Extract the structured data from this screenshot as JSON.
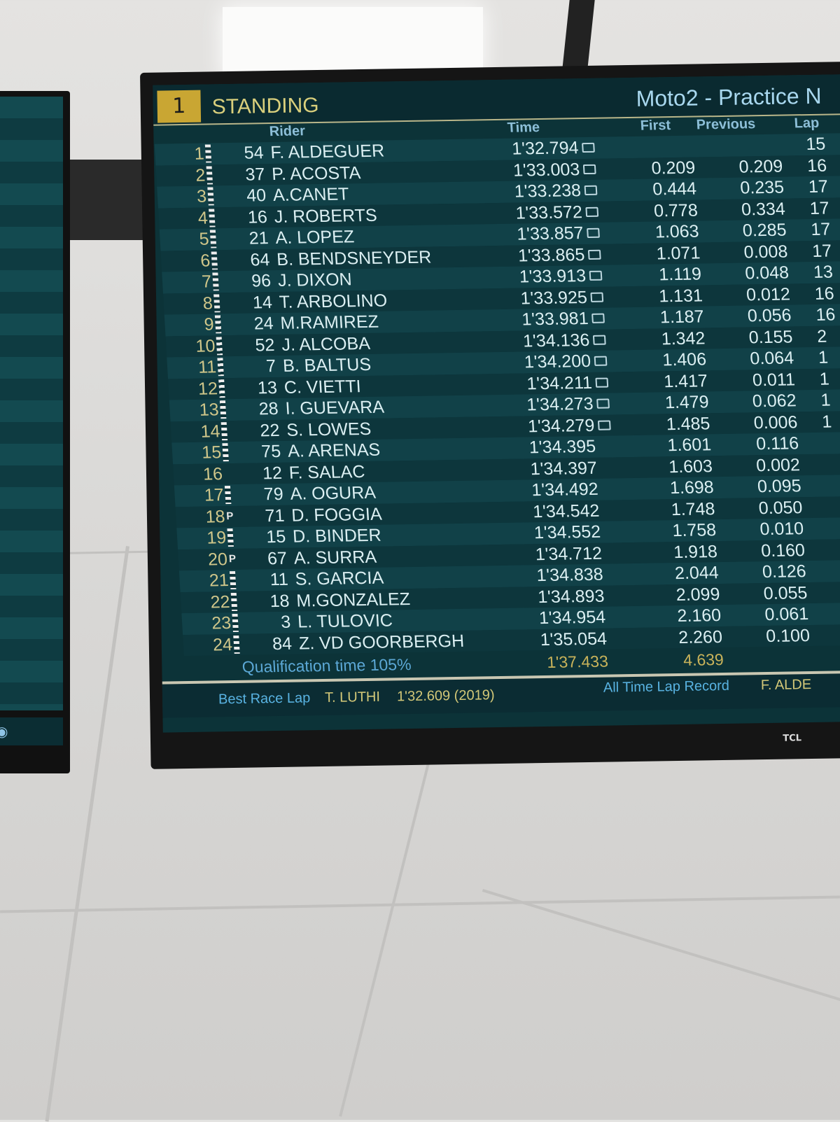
{
  "board": {
    "session_number": "1",
    "standing_label": "STANDING",
    "title": "Moto2 - Practice N",
    "columns": {
      "rider": "Rider",
      "time": "Time",
      "first": "First",
      "previous": "Previous",
      "laps": "Lap"
    },
    "rows": [
      {
        "pos": "1",
        "marker": "checkered",
        "number": "54",
        "rider": "F. ALDEGUER",
        "time": "1'32.794",
        "time_icon": true,
        "first": "",
        "previous": "",
        "laps": "15"
      },
      {
        "pos": "2",
        "marker": "checkered",
        "number": "37",
        "rider": "P. ACOSTA",
        "time": "1'33.003",
        "time_icon": true,
        "first": "0.209",
        "previous": "0.209",
        "laps": "16"
      },
      {
        "pos": "3",
        "marker": "checkered",
        "number": "40",
        "rider": "A.CANET",
        "time": "1'33.238",
        "time_icon": true,
        "first": "0.444",
        "previous": "0.235",
        "laps": "17"
      },
      {
        "pos": "4",
        "marker": "checkered",
        "number": "16",
        "rider": "J. ROBERTS",
        "time": "1'33.572",
        "time_icon": true,
        "first": "0.778",
        "previous": "0.334",
        "laps": "17"
      },
      {
        "pos": "5",
        "marker": "checkered",
        "number": "21",
        "rider": "A. LOPEZ",
        "time": "1'33.857",
        "time_icon": true,
        "first": "1.063",
        "previous": "0.285",
        "laps": "17"
      },
      {
        "pos": "6",
        "marker": "checkered",
        "number": "64",
        "rider": "B. BENDSNEYDER",
        "time": "1'33.865",
        "time_icon": true,
        "first": "1.071",
        "previous": "0.008",
        "laps": "17"
      },
      {
        "pos": "7",
        "marker": "checkered",
        "number": "96",
        "rider": "J. DIXON",
        "time": "1'33.913",
        "time_icon": true,
        "first": "1.119",
        "previous": "0.048",
        "laps": "13"
      },
      {
        "pos": "8",
        "marker": "checkered",
        "number": "14",
        "rider": "T. ARBOLINO",
        "time": "1'33.925",
        "time_icon": true,
        "first": "1.131",
        "previous": "0.012",
        "laps": "16"
      },
      {
        "pos": "9",
        "marker": "checkered",
        "number": "24",
        "rider": "M.RAMIREZ",
        "time": "1'33.981",
        "time_icon": true,
        "first": "1.187",
        "previous": "0.056",
        "laps": "16"
      },
      {
        "pos": "10",
        "marker": "checkered",
        "number": "52",
        "rider": "J. ALCOBA",
        "time": "1'34.136",
        "time_icon": true,
        "first": "1.342",
        "previous": "0.155",
        "laps": "2"
      },
      {
        "pos": "11",
        "marker": "checkered",
        "number": "7",
        "rider": "B. BALTUS",
        "time": "1'34.200",
        "time_icon": true,
        "first": "1.406",
        "previous": "0.064",
        "laps": "1"
      },
      {
        "pos": "12",
        "marker": "checkered",
        "number": "13",
        "rider": "C. VIETTI",
        "time": "1'34.211",
        "time_icon": true,
        "first": "1.417",
        "previous": "0.011",
        "laps": "1"
      },
      {
        "pos": "13",
        "marker": "checkered",
        "number": "28",
        "rider": "I. GUEVARA",
        "time": "1'34.273",
        "time_icon": true,
        "first": "1.479",
        "previous": "0.062",
        "laps": "1"
      },
      {
        "pos": "14",
        "marker": "checkered",
        "number": "22",
        "rider": "S. LOWES",
        "time": "1'34.279",
        "time_icon": true,
        "first": "1.485",
        "previous": "0.006",
        "laps": "1"
      },
      {
        "pos": "15",
        "marker": "checkered",
        "number": "75",
        "rider": "A. ARENAS",
        "time": "1'34.395",
        "time_icon": false,
        "first": "1.601",
        "previous": "0.116",
        "laps": ""
      },
      {
        "pos": "16",
        "marker": "",
        "number": "12",
        "rider": "F. SALAC",
        "time": "1'34.397",
        "time_icon": false,
        "first": "1.603",
        "previous": "0.002",
        "laps": ""
      },
      {
        "pos": "17",
        "marker": "checkered",
        "number": "79",
        "rider": "A. OGURA",
        "time": "1'34.492",
        "time_icon": false,
        "first": "1.698",
        "previous": "0.095",
        "laps": ""
      },
      {
        "pos": "18",
        "marker": "P",
        "number": "71",
        "rider": "D. FOGGIA",
        "time": "1'34.542",
        "time_icon": false,
        "first": "1.748",
        "previous": "0.050",
        "laps": ""
      },
      {
        "pos": "19",
        "marker": "checkered",
        "number": "15",
        "rider": "D. BINDER",
        "time": "1'34.552",
        "time_icon": false,
        "first": "1.758",
        "previous": "0.010",
        "laps": ""
      },
      {
        "pos": "20",
        "marker": "P",
        "number": "67",
        "rider": "A. SURRA",
        "time": "1'34.712",
        "time_icon": false,
        "first": "1.918",
        "previous": "0.160",
        "laps": ""
      },
      {
        "pos": "21",
        "marker": "checkered",
        "number": "11",
        "rider": "S. GARCIA",
        "time": "1'34.838",
        "time_icon": false,
        "first": "2.044",
        "previous": "0.126",
        "laps": ""
      },
      {
        "pos": "22",
        "marker": "checkered",
        "number": "18",
        "rider": "M.GONZALEZ",
        "time": "1'34.893",
        "time_icon": false,
        "first": "2.099",
        "previous": "0.055",
        "laps": ""
      },
      {
        "pos": "23",
        "marker": "checkered",
        "number": "3",
        "rider": "L. TULOVIC",
        "time": "1'34.954",
        "time_icon": false,
        "first": "2.160",
        "previous": "0.061",
        "laps": ""
      },
      {
        "pos": "24",
        "marker": "checkered",
        "number": "84",
        "rider": "Z. VD GOORBERGH",
        "time": "1'35.054",
        "time_icon": false,
        "first": "2.260",
        "previous": "0.100",
        "laps": ""
      }
    ],
    "qualification": {
      "label": "Qualification time 105%",
      "time": "1'37.433",
      "gap": "4.639"
    },
    "footer": {
      "best_race_lap_label": "Best Race Lap",
      "best_race_lap_rider": "T. LUTHI",
      "best_race_lap_time": "1'32.609 (2019)",
      "all_time_label": "All Time Lap Record",
      "all_time_rider": "F. ALDE"
    },
    "tv_brand": "TCL"
  },
  "colors": {
    "screen_bg": "#0c3338",
    "session_badge": "#c9a633",
    "position_text": "#cfc68a",
    "title_text": "#a9d8ef"
  }
}
